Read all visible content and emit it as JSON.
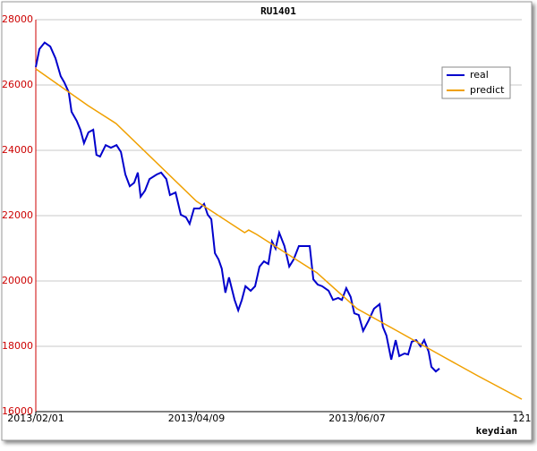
{
  "chart_data": {
    "type": "line",
    "title": "RU1401",
    "x_label": "keydian",
    "xlim": [
      0,
      121
    ],
    "xticks": [
      {
        "value": 0,
        "label": "2013/02/01"
      },
      {
        "value": 40,
        "label": "2013/04/09"
      },
      {
        "value": 80,
        "label": "2013/06/07"
      },
      121
    ],
    "ylim": [
      16000,
      28000
    ],
    "yticks": [
      16000,
      18000,
      20000,
      22000,
      24000,
      26000,
      28000
    ],
    "grid": true,
    "legend": "upper right",
    "series": [
      {
        "name": "real",
        "color": "#0000cc",
        "x": [
          0,
          0.9,
          2.2,
          3.6,
          4.9,
          6.2,
          7.1,
          8.2,
          8.9,
          10.2,
          11.1,
          12.0,
          13.1,
          14.3,
          15.1,
          16.0,
          17.4,
          18.7,
          20.1,
          21.2,
          22.3,
          23.4,
          24.5,
          25.4,
          26.1,
          27.2,
          28.3,
          30.1,
          31.2,
          32.5,
          33.4,
          34.8,
          36.1,
          37.4,
          38.3,
          39.4,
          40.8,
          41.9,
          42.8,
          43.7,
          44.6,
          45.5,
          46.3,
          47.2,
          48.1,
          49.5,
          50.4,
          51.3,
          52.2,
          53.5,
          54.6,
          55.7,
          56.8,
          57.9,
          58.8,
          59.7,
          60.6,
          61.9,
          63.1,
          64.2,
          65.5,
          66.4,
          68.2,
          69.1,
          70.2,
          71.3,
          72.9,
          74.0,
          75.3,
          76.2,
          77.3,
          78.4,
          79.3,
          80.4,
          81.5,
          82.9,
          84.2,
          85.6,
          86.4,
          87.3,
          88.5,
          89.6,
          90.5,
          91.8,
          92.7,
          93.6,
          94.7,
          95.8,
          96.7,
          97.8,
          98.5,
          99.6,
          100.5
        ],
        "values": [
          26550,
          27100,
          27300,
          27180,
          26820,
          26270,
          26080,
          25780,
          25180,
          24900,
          24630,
          24220,
          24550,
          24630,
          23860,
          23810,
          24160,
          24080,
          24160,
          23950,
          23260,
          22900,
          23010,
          23320,
          22580,
          22770,
          23120,
          23260,
          23320,
          23120,
          22630,
          22710,
          22030,
          21950,
          21750,
          22220,
          22220,
          22360,
          22030,
          21890,
          20850,
          20660,
          20380,
          19640,
          20110,
          19420,
          19100,
          19420,
          19840,
          19700,
          19840,
          20440,
          20600,
          20520,
          21210,
          20990,
          21480,
          21070,
          20440,
          20660,
          21070,
          21070,
          21070,
          20050,
          19890,
          19840,
          19700,
          19420,
          19480,
          19420,
          19780,
          19510,
          19010,
          18960,
          18470,
          18800,
          19150,
          19290,
          18600,
          18330,
          17590,
          18190,
          17700,
          17780,
          17750,
          18140,
          18190,
          18000,
          18190,
          17840,
          17370,
          17230,
          17320
        ]
      },
      {
        "name": "predict",
        "color": "#f0a000",
        "x": [
          0,
          13,
          20,
          40,
          52,
          53,
          55,
          70,
          80,
          90,
          100,
          110,
          121
        ],
        "values": [
          26493,
          25370,
          24820,
          22440,
          21480,
          21560,
          21425,
          20250,
          19150,
          18470,
          17780,
          17100,
          16380
        ]
      }
    ]
  }
}
